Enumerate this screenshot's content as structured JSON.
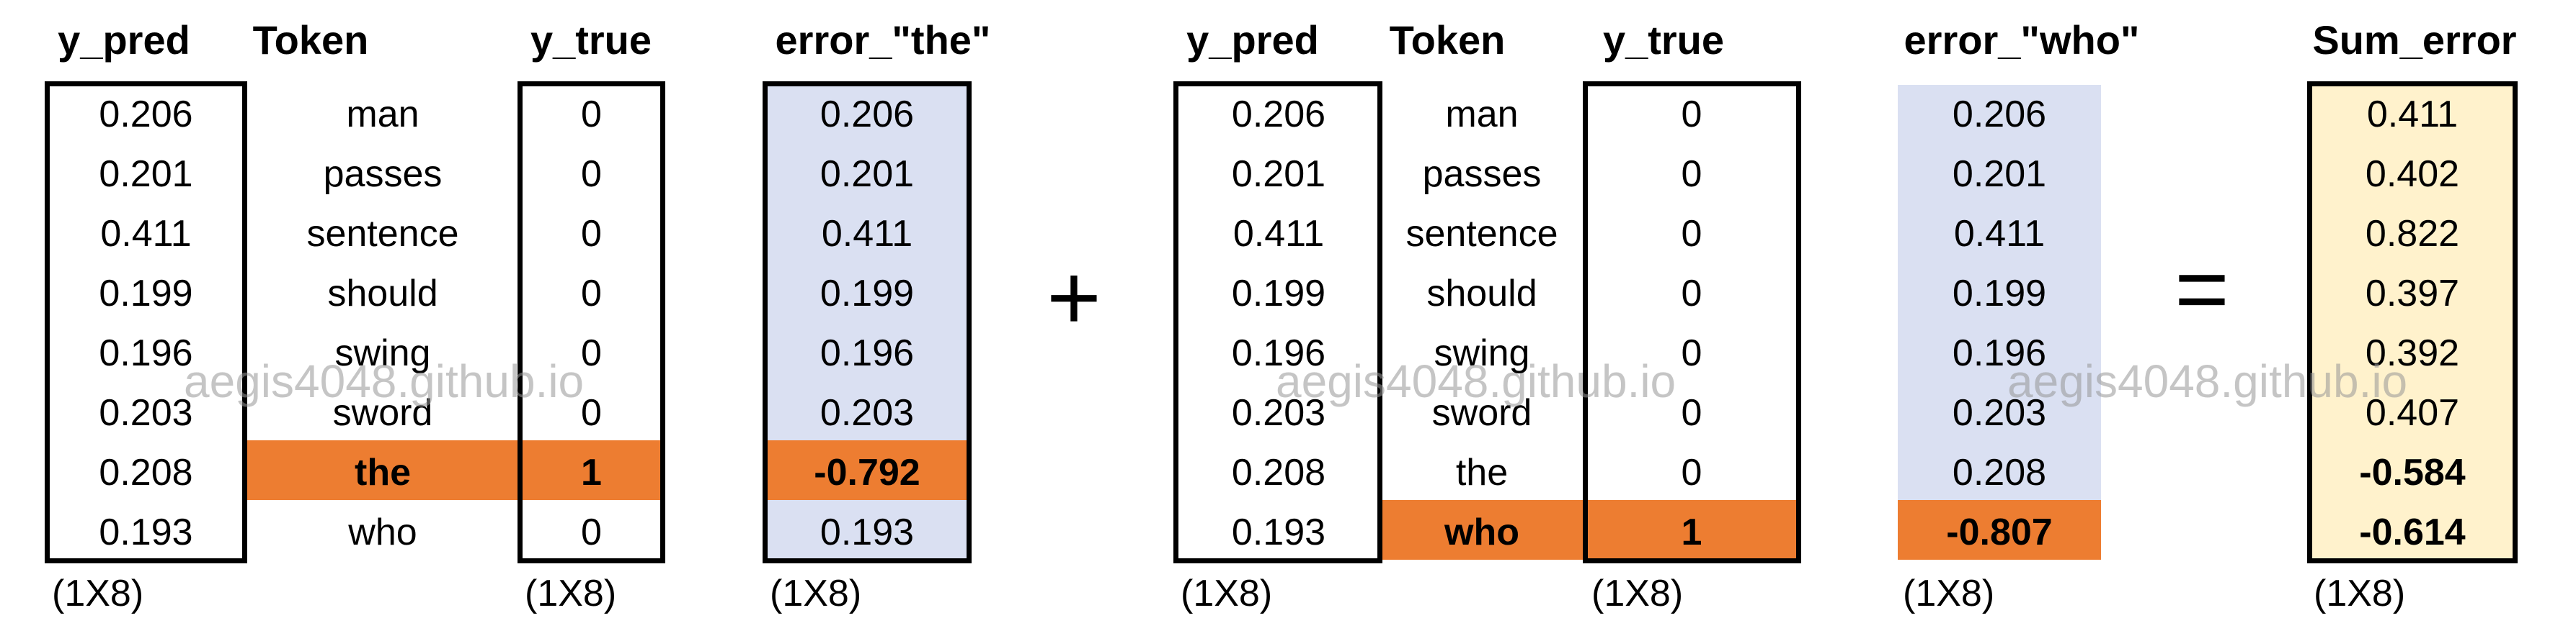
{
  "headers": {
    "y_pred": "y_pred",
    "token": "Token",
    "y_true": "y_true",
    "error_the": "error_\"the\"",
    "error_who": "error_\"who\"",
    "sum_error": "Sum_error"
  },
  "dimension_label": "(1X8)",
  "plus_sign": "+",
  "equals_sign": "=",
  "watermark": "aegis4048.github.io",
  "y_pred": [
    "0.206",
    "0.201",
    "0.411",
    "0.199",
    "0.196",
    "0.203",
    "0.208",
    "0.193"
  ],
  "tokens": [
    "man",
    "passes",
    "sentence",
    "should",
    "swing",
    "sword",
    "the",
    "who"
  ],
  "y_true_the": [
    "0",
    "0",
    "0",
    "0",
    "0",
    "0",
    "1",
    "0"
  ],
  "y_true_who": [
    "0",
    "0",
    "0",
    "0",
    "0",
    "0",
    "0",
    "1"
  ],
  "error_the": [
    "0.206",
    "0.201",
    "0.411",
    "0.199",
    "0.196",
    "0.203",
    "-0.792",
    "0.193"
  ],
  "error_who": [
    "0.206",
    "0.201",
    "0.411",
    "0.199",
    "0.196",
    "0.203",
    "0.208",
    "-0.807"
  ],
  "sum_error": [
    "0.411",
    "0.402",
    "0.822",
    "0.397",
    "0.392",
    "0.407",
    "-0.584",
    "-0.614"
  ],
  "colors": {
    "highlight": "#ED7D31",
    "error_fill": "#DAE0F2",
    "sum_fill": "#FFF2CC"
  }
}
